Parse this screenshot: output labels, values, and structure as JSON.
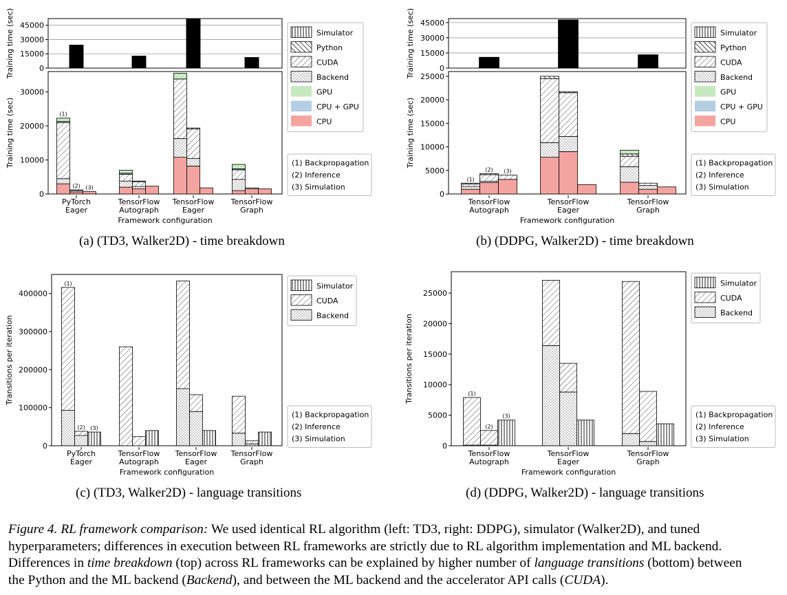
{
  "legends": {
    "time": [
      "Simulator",
      "Python",
      "CUDA",
      "Backend",
      "GPU",
      "CPU + GPU",
      "CPU"
    ],
    "trans": [
      "Simulator",
      "CUDA",
      "Backend"
    ],
    "phases": [
      "(1) Backpropagation",
      "(2) Inference",
      "(3) Simulation"
    ]
  },
  "colors": {
    "cpu": "#f4a4a0",
    "cpu_gpu": "#b3cde3",
    "gpu": "#c7e9c0",
    "top_bar": "#000000"
  },
  "chart_data": [
    {
      "type": "bar",
      "panel": "a",
      "caption": "(a) (TD3, Walker2D) - time breakdown",
      "xlabel": "Framework configuration",
      "ylabel": "Training time (sec)",
      "categories": [
        "PyTorch\nEager",
        "TensorFlow\nAutograph",
        "TensorFlow\nEager",
        "TensorFlow\nGraph"
      ],
      "phase_markers": [
        "(1)",
        "(2)",
        "(3)"
      ],
      "ylim": [
        0,
        36000
      ],
      "yticks": [
        0,
        10000,
        20000,
        30000
      ],
      "total_panel": {
        "ylabel": "Training time (sec)",
        "ylim": [
          0,
          52000
        ],
        "yticks": [
          0,
          15000,
          30000,
          45000
        ],
        "values": [
          24500,
          13000,
          52000,
          11500
        ]
      },
      "stacks": [
        [
          {
            "CPU": 3000,
            "Backend": 1500,
            "CUDA": 16500,
            "Python": 0,
            "CPU + GPU": 300,
            "GPU": 1000
          },
          {
            "CPU": 600,
            "Backend": 0,
            "CUDA": 400,
            "Python": 200,
            "Simulator": 0
          },
          {
            "CPU": 700,
            "Simulator": 0
          }
        ],
        [
          {
            "CPU": 2000,
            "Backend": 1800,
            "CUDA": 2000,
            "CPU + GPU": 300,
            "GPU": 900
          },
          {
            "CPU": 1500,
            "Backend": 700,
            "CUDA": 1400,
            "Python": 200
          },
          {
            "CPU": 2300,
            "Simulator": 0
          }
        ],
        [
          {
            "CPU": 10800,
            "Backend": 5500,
            "CUDA": 17500,
            "GPU": 1700
          },
          {
            "CPU": 8200,
            "Backend": 2200,
            "CUDA": 8700,
            "Python": 300
          },
          {
            "CPU": 1800,
            "Simulator": 0
          }
        ],
        [
          {
            "CPU": 1000,
            "Backend": 3300,
            "CUDA": 2800,
            "CPU + GPU": 300,
            "GPU": 1300
          },
          {
            "CPU": 1500,
            "CUDA": 300
          },
          {
            "CPU": 1500,
            "Simulator": 0
          }
        ]
      ]
    },
    {
      "type": "bar",
      "panel": "b",
      "caption": "(b) (DDPG, Walker2D) - time breakdown",
      "xlabel": "Framework configuration",
      "ylabel": "Training time (sec)",
      "categories": [
        "TensorFlow\nAutograph",
        "TensorFlow\nEager",
        "TensorFlow\nGraph"
      ],
      "phase_markers": [
        "(1)",
        "(2)",
        "(3)"
      ],
      "ylim": [
        0,
        26000
      ],
      "yticks": [
        0,
        5000,
        10000,
        15000,
        20000,
        25000
      ],
      "total_panel": {
        "ylabel": "Training time (sec)",
        "ylim": [
          0,
          49000
        ],
        "yticks": [
          0,
          15000,
          30000,
          45000
        ],
        "values": [
          11000,
          48000,
          13500
        ]
      },
      "stacks": [
        [
          {
            "CPU": 1000,
            "Backend": 600,
            "CUDA": 500,
            "Python": 200
          },
          {
            "CPU": 2400,
            "Backend": 300,
            "CUDA": 1400,
            "Python": 200
          },
          {
            "CPU": 3100,
            "CUDA": 900
          }
        ],
        [
          {
            "CPU": 7800,
            "Backend": 3100,
            "CUDA": 13600,
            "Python": 500,
            "Simulator": 0
          },
          {
            "CPU": 9000,
            "Backend": 3200,
            "CUDA": 9300,
            "Python": 200
          },
          {
            "CPU": 2000
          }
        ],
        [
          {
            "CPU": 2500,
            "Backend": 3300,
            "CUDA": 2200,
            "Python": 500,
            "GPU": 800
          },
          {
            "CPU": 1000,
            "Backend": 800,
            "CUDA": 500
          },
          {
            "CPU": 1500
          }
        ]
      ]
    },
    {
      "type": "bar",
      "panel": "c",
      "caption": "(c) (TD3, Walker2D) - language transitions",
      "xlabel": "Framework configuration",
      "ylabel": "Transitions per iteration",
      "categories": [
        "PyTorch\nEager",
        "TensorFlow\nAutograph",
        "TensorFlow\nEager",
        "TensorFlow\nGraph"
      ],
      "phase_markers": [
        "(1)",
        "(2)",
        "(3)"
      ],
      "ylim": [
        0,
        450000
      ],
      "yticks": [
        0,
        100000,
        200000,
        300000,
        400000
      ],
      "stacks": [
        [
          {
            "Backend": 93000,
            "CUDA": 323000
          },
          {
            "Backend": 27000,
            "CUDA": 11000
          },
          {
            "Simulator": 36000
          }
        ],
        [
          {
            "Backend": 0,
            "CUDA": 260000
          },
          {
            "Backend": 0,
            "CUDA": 24000
          },
          {
            "Simulator": 40000
          }
        ],
        [
          {
            "Backend": 150000,
            "CUDA": 283000
          },
          {
            "Backend": 90000,
            "CUDA": 44000
          },
          {
            "Simulator": 40000
          }
        ],
        [
          {
            "Backend": 33000,
            "CUDA": 97000
          },
          {
            "Backend": 5000,
            "CUDA": 8000
          },
          {
            "Simulator": 36000
          }
        ]
      ]
    },
    {
      "type": "bar",
      "panel": "d",
      "caption": "(d) (DDPG, Walker2D) - language transitions",
      "xlabel": "Framework configuration",
      "ylabel": "Transitions per iteration",
      "categories": [
        "TensorFlow\nAutograph",
        "TensorFlow\nEager",
        "TensorFlow\nGraph"
      ],
      "phase_markers": [
        "(1)",
        "(2)",
        "(3)"
      ],
      "ylim": [
        0,
        28500
      ],
      "yticks": [
        0,
        5000,
        10000,
        15000,
        20000,
        25000
      ],
      "stacks": [
        [
          {
            "Backend": 100,
            "CUDA": 7800
          },
          {
            "Backend": 100,
            "CUDA": 2400
          },
          {
            "Simulator": 4200
          }
        ],
        [
          {
            "Backend": 16400,
            "CUDA": 10700
          },
          {
            "Backend": 8800,
            "CUDA": 4700
          },
          {
            "Simulator": 4200
          }
        ],
        [
          {
            "Backend": 2000,
            "CUDA": 24900
          },
          {
            "Backend": 700,
            "CUDA": 8200
          },
          {
            "Simulator": 3600
          }
        ]
      ]
    }
  ],
  "figure_caption": {
    "label": "Figure 4.",
    "title": "RL framework comparison:",
    "lines": [
      [
        {
          "t": " We used identical RL algorithm (left: TD3, right: DDPG), simulator (Walker2D), and tuned",
          "i": false
        }
      ],
      [
        {
          "t": "hyperparameters; differences in execution between RL frameworks are strictly due to RL algorithm implementation and ML backend.",
          "i": false
        }
      ],
      [
        {
          "t": "Differences in ",
          "i": false
        },
        {
          "t": "time breakdown",
          "i": true
        },
        {
          "t": " (top) across RL frameworks can be explained by higher number of ",
          "i": false
        },
        {
          "t": "language transitions",
          "i": true
        },
        {
          "t": " (bottom) between",
          "i": false
        }
      ],
      [
        {
          "t": "the Python and the ML backend (",
          "i": false
        },
        {
          "t": "Backend",
          "i": true
        },
        {
          "t": "), and between the ML backend and the accelerator API calls (",
          "i": false
        },
        {
          "t": "CUDA",
          "i": true
        },
        {
          "t": ").",
          "i": false
        }
      ]
    ]
  }
}
